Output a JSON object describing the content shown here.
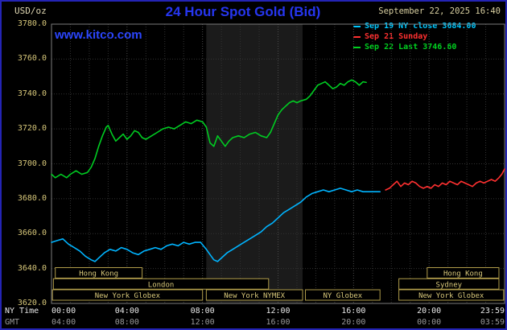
{
  "header": {
    "unit_label": "USD/oz",
    "title": "24 Hour Spot Gold (Bid)",
    "datetime": "September 22, 2025 16:40",
    "watermark": "www.kitco.com"
  },
  "axes": {
    "ny_time_label": "NY Time",
    "gmt_label": "GMT",
    "y_ticks": [
      "3780.0",
      "3760.0",
      "3740.0",
      "3720.0",
      "3700.0",
      "3680.0",
      "3660.0",
      "3640.0",
      "3620.0"
    ],
    "tick_hours": [
      0,
      4,
      8,
      12,
      16,
      20,
      23.98
    ],
    "ny_ticks": [
      "00:00",
      "04:00",
      "08:00",
      "12:00",
      "16:00",
      "20:00",
      "23:59"
    ],
    "gmt_ticks": [
      "04:00",
      "08:00",
      "12:00",
      "16:00",
      "20:00",
      "00:00",
      "03:59"
    ]
  },
  "sessions": [
    {
      "row": 0,
      "start": 0.2,
      "end": 4.8,
      "label": "Hong Kong"
    },
    {
      "row": 0,
      "start": 19.9,
      "end": 23.7,
      "label": "Hong Kong"
    },
    {
      "row": 1,
      "start": 0.1,
      "end": 11.5,
      "label": "London"
    },
    {
      "row": 1,
      "start": 18.4,
      "end": 23.7,
      "label": "Sydney"
    },
    {
      "row": 2,
      "start": 0.05,
      "end": 8.0,
      "label": "New York Globex"
    },
    {
      "row": 2,
      "start": 8.2,
      "end": 13.3,
      "label": "New York NYMEX"
    },
    {
      "row": 2,
      "start": 13.45,
      "end": 17.4,
      "label": "NY Globex"
    },
    {
      "row": 2,
      "start": 18.4,
      "end": 23.95,
      "label": "New York Globex"
    }
  ],
  "colors": {
    "shade": "#1b1b1b",
    "grid_minor": "#333333",
    "grid_major": "#4a4a4a",
    "plot_border": "#7d7d7d",
    "session_border": "#b09c4a",
    "session_text": "#d8c87a"
  },
  "chart_data": {
    "type": "line",
    "title": "24 Hour Spot Gold (Bid)",
    "xlabel": "NY Time (hours 00:00-23:59)",
    "ylabel": "USD/oz",
    "xlim": [
      0,
      24
    ],
    "ylim": [
      3620,
      3780
    ],
    "y_grid_step": 20,
    "x_grid_step_hours": 1,
    "nymex_shade_hours": [
      8.2,
      13.3
    ],
    "legend_position": "top-right",
    "legend": [
      {
        "label": "Sep 19 NY close 3684.00",
        "color": "#00c8ff"
      },
      {
        "label": "Sep 21 Sunday",
        "color": "#ff3030"
      },
      {
        "label": "Sep 22 Last 3746.60",
        "color": "#00d020"
      }
    ],
    "series": [
      {
        "name": "Sep 19 NY close",
        "color": "#00b4ff",
        "points": [
          [
            0.0,
            3655
          ],
          [
            0.3,
            3656
          ],
          [
            0.6,
            3657
          ],
          [
            0.9,
            3654
          ],
          [
            1.2,
            3652
          ],
          [
            1.5,
            3650
          ],
          [
            1.8,
            3647
          ],
          [
            2.1,
            3645
          ],
          [
            2.3,
            3644
          ],
          [
            2.5,
            3646
          ],
          [
            2.8,
            3649
          ],
          [
            3.1,
            3651
          ],
          [
            3.4,
            3650
          ],
          [
            3.7,
            3652
          ],
          [
            4.0,
            3651
          ],
          [
            4.3,
            3649
          ],
          [
            4.6,
            3648
          ],
          [
            4.9,
            3650
          ],
          [
            5.2,
            3651
          ],
          [
            5.5,
            3652
          ],
          [
            5.8,
            3651
          ],
          [
            6.1,
            3653
          ],
          [
            6.4,
            3654
          ],
          [
            6.7,
            3653
          ],
          [
            7.0,
            3655
          ],
          [
            7.3,
            3654
          ],
          [
            7.6,
            3655
          ],
          [
            7.9,
            3655
          ],
          [
            8.2,
            3651
          ],
          [
            8.4,
            3648
          ],
          [
            8.6,
            3645
          ],
          [
            8.8,
            3644
          ],
          [
            9.0,
            3646
          ],
          [
            9.3,
            3649
          ],
          [
            9.6,
            3651
          ],
          [
            9.9,
            3653
          ],
          [
            10.2,
            3655
          ],
          [
            10.5,
            3657
          ],
          [
            10.8,
            3659
          ],
          [
            11.1,
            3661
          ],
          [
            11.4,
            3664
          ],
          [
            11.7,
            3666
          ],
          [
            12.0,
            3669
          ],
          [
            12.3,
            3672
          ],
          [
            12.6,
            3674
          ],
          [
            12.9,
            3676
          ],
          [
            13.2,
            3678
          ],
          [
            13.5,
            3681
          ],
          [
            13.8,
            3683
          ],
          [
            14.1,
            3684
          ],
          [
            14.4,
            3685
          ],
          [
            14.7,
            3684
          ],
          [
            15.0,
            3685
          ],
          [
            15.3,
            3686
          ],
          [
            15.6,
            3685
          ],
          [
            15.9,
            3684
          ],
          [
            16.2,
            3685
          ],
          [
            16.5,
            3684
          ],
          [
            16.8,
            3684
          ],
          [
            17.1,
            3684
          ],
          [
            17.4,
            3684
          ]
        ]
      },
      {
        "name": "Sep 21 Sunday",
        "color": "#ff3030",
        "points": [
          [
            17.7,
            3685
          ],
          [
            17.9,
            3686
          ],
          [
            18.1,
            3688
          ],
          [
            18.3,
            3690
          ],
          [
            18.5,
            3687
          ],
          [
            18.7,
            3689
          ],
          [
            18.9,
            3688
          ],
          [
            19.1,
            3690
          ],
          [
            19.3,
            3689
          ],
          [
            19.5,
            3687
          ],
          [
            19.7,
            3686
          ],
          [
            19.9,
            3687
          ],
          [
            20.1,
            3686
          ],
          [
            20.3,
            3688
          ],
          [
            20.5,
            3687
          ],
          [
            20.7,
            3689
          ],
          [
            20.9,
            3688
          ],
          [
            21.1,
            3690
          ],
          [
            21.3,
            3689
          ],
          [
            21.5,
            3688
          ],
          [
            21.7,
            3690
          ],
          [
            21.9,
            3689
          ],
          [
            22.1,
            3688
          ],
          [
            22.3,
            3687
          ],
          [
            22.5,
            3689
          ],
          [
            22.7,
            3690
          ],
          [
            22.9,
            3689
          ],
          [
            23.1,
            3690
          ],
          [
            23.3,
            3691
          ],
          [
            23.5,
            3690
          ],
          [
            23.7,
            3692
          ],
          [
            23.85,
            3694
          ],
          [
            24.0,
            3697
          ]
        ]
      },
      {
        "name": "Sep 22 Last",
        "color": "#00cc22",
        "points": [
          [
            0.0,
            3694
          ],
          [
            0.2,
            3692
          ],
          [
            0.5,
            3694
          ],
          [
            0.8,
            3692
          ],
          [
            1.0,
            3694
          ],
          [
            1.3,
            3696
          ],
          [
            1.6,
            3694
          ],
          [
            1.9,
            3695
          ],
          [
            2.1,
            3698
          ],
          [
            2.3,
            3703
          ],
          [
            2.5,
            3710
          ],
          [
            2.7,
            3716
          ],
          [
            2.9,
            3721
          ],
          [
            3.0,
            3722
          ],
          [
            3.2,
            3717
          ],
          [
            3.4,
            3713
          ],
          [
            3.6,
            3715
          ],
          [
            3.8,
            3717
          ],
          [
            4.0,
            3714
          ],
          [
            4.2,
            3716
          ],
          [
            4.4,
            3719
          ],
          [
            4.6,
            3718
          ],
          [
            4.8,
            3715
          ],
          [
            5.0,
            3714
          ],
          [
            5.3,
            3716
          ],
          [
            5.6,
            3718
          ],
          [
            5.9,
            3720
          ],
          [
            6.2,
            3721
          ],
          [
            6.5,
            3720
          ],
          [
            6.8,
            3722
          ],
          [
            7.1,
            3724
          ],
          [
            7.4,
            3723
          ],
          [
            7.7,
            3725
          ],
          [
            8.0,
            3724
          ],
          [
            8.2,
            3721
          ],
          [
            8.4,
            3712
          ],
          [
            8.6,
            3710
          ],
          [
            8.8,
            3716
          ],
          [
            9.0,
            3713
          ],
          [
            9.2,
            3710
          ],
          [
            9.4,
            3713
          ],
          [
            9.6,
            3715
          ],
          [
            9.9,
            3716
          ],
          [
            10.2,
            3715
          ],
          [
            10.5,
            3717
          ],
          [
            10.8,
            3718
          ],
          [
            11.1,
            3716
          ],
          [
            11.4,
            3715
          ],
          [
            11.6,
            3718
          ],
          [
            11.8,
            3723
          ],
          [
            12.0,
            3728
          ],
          [
            12.2,
            3731
          ],
          [
            12.4,
            3733
          ],
          [
            12.6,
            3735
          ],
          [
            12.8,
            3736
          ],
          [
            13.0,
            3735
          ],
          [
            13.2,
            3736
          ],
          [
            13.5,
            3737
          ],
          [
            13.7,
            3739
          ],
          [
            13.9,
            3742
          ],
          [
            14.1,
            3745
          ],
          [
            14.3,
            3746
          ],
          [
            14.5,
            3747
          ],
          [
            14.7,
            3745
          ],
          [
            14.9,
            3743
          ],
          [
            15.1,
            3744
          ],
          [
            15.3,
            3746
          ],
          [
            15.5,
            3745
          ],
          [
            15.7,
            3747
          ],
          [
            15.9,
            3748
          ],
          [
            16.1,
            3747
          ],
          [
            16.3,
            3745
          ],
          [
            16.5,
            3747
          ],
          [
            16.67,
            3746.6
          ]
        ]
      }
    ]
  }
}
